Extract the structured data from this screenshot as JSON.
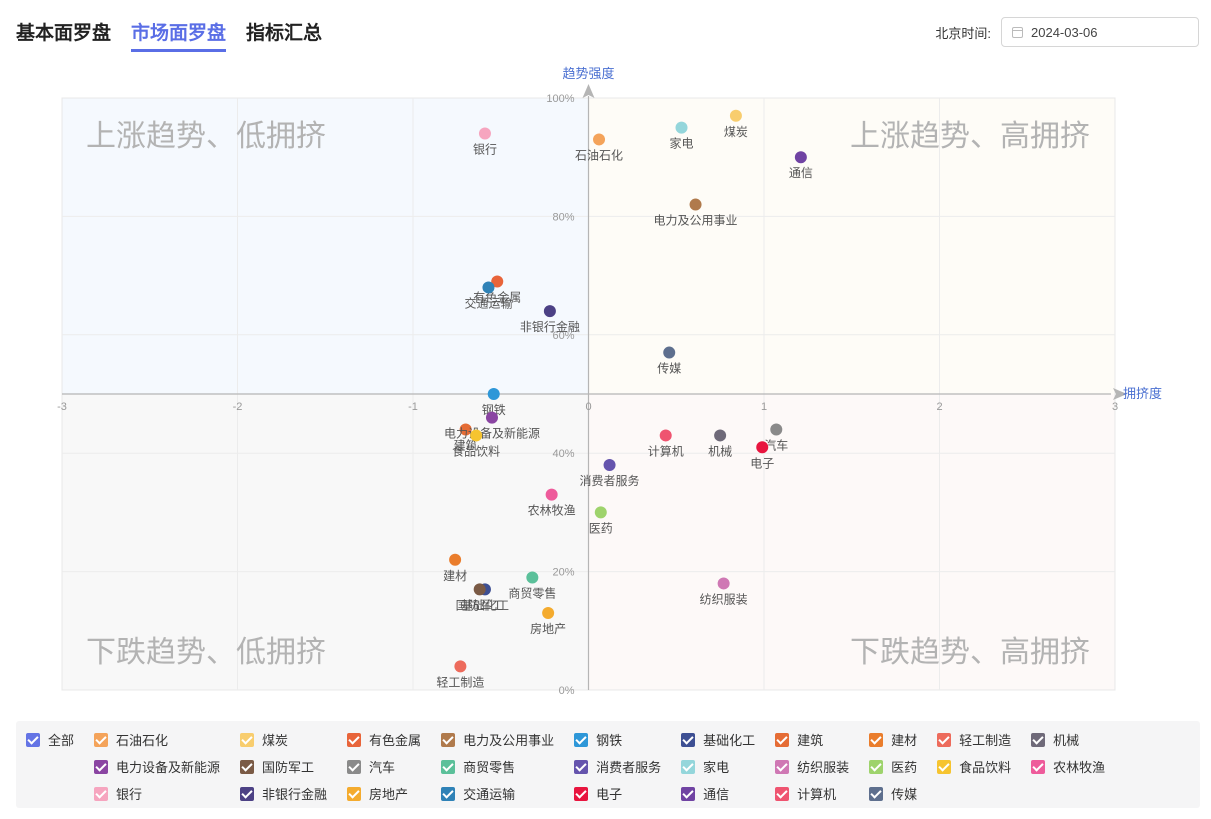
{
  "tabs": [
    {
      "label": "基本面罗盘",
      "active": false
    },
    {
      "label": "市场面罗盘",
      "active": true
    },
    {
      "label": "指标汇总",
      "active": false
    }
  ],
  "date": {
    "label": "北京时间:",
    "value": "2024-03-06"
  },
  "chart_data": {
    "type": "scatter",
    "xlabel": "拥挤度",
    "ylabel": "趋势强度",
    "xlim": [
      -3,
      3
    ],
    "ylim": [
      0,
      100
    ],
    "x_ticks": [
      "-3",
      "-2",
      "-1",
      "0",
      "1",
      "2",
      "3"
    ],
    "y_ticks": [
      "0%",
      "20%",
      "40%",
      "60%",
      "80%",
      "100%"
    ],
    "quadrant_labels": {
      "top_left": "上涨趋势、低拥挤",
      "top_right": "上涨趋势、高拥挤",
      "bottom_left": "下跌趋势、低拥挤",
      "bottom_right": "下跌趋势、高拥挤"
    },
    "quadrant_colors": {
      "top_left": "#f5f9fe",
      "top_right": "#fefcf7",
      "bottom_left": "#f8f8f8",
      "bottom_right": "#fdf9f8"
    },
    "points": [
      {
        "name": "石油石化",
        "x": 0.06,
        "y": 93,
        "color": "#f4a35a"
      },
      {
        "name": "煤炭",
        "x": 0.84,
        "y": 97,
        "color": "#f8cd6e"
      },
      {
        "name": "有色金属",
        "x": -0.52,
        "y": 69,
        "color": "#e8643a"
      },
      {
        "name": "电力及公用事业",
        "x": 0.61,
        "y": 82,
        "color": "#b07a4c"
      },
      {
        "name": "钢铁",
        "x": -0.54,
        "y": 50,
        "color": "#2e97d8"
      },
      {
        "name": "基础化工",
        "x": -0.59,
        "y": 17,
        "color": "#3d4f93"
      },
      {
        "name": "建筑",
        "x": -0.7,
        "y": 44,
        "color": "#e56c35"
      },
      {
        "name": "建材",
        "x": -0.76,
        "y": 22,
        "color": "#ea7d2c"
      },
      {
        "name": "轻工制造",
        "x": -0.73,
        "y": 4,
        "color": "#ed6b5c"
      },
      {
        "name": "机械",
        "x": 0.75,
        "y": 43,
        "color": "#6f6a79"
      },
      {
        "name": "电力设备及新能源",
        "x": -0.55,
        "y": 46,
        "color": "#8a45a2"
      },
      {
        "name": "国防军工",
        "x": -0.62,
        "y": 17,
        "color": "#7a5a45"
      },
      {
        "name": "汽车",
        "x": 1.07,
        "y": 44,
        "color": "#8a8a8a"
      },
      {
        "name": "商贸零售",
        "x": -0.32,
        "y": 19,
        "color": "#5bc09a"
      },
      {
        "name": "消费者服务",
        "x": 0.12,
        "y": 38,
        "color": "#6554ad"
      },
      {
        "name": "家电",
        "x": 0.53,
        "y": 95,
        "color": "#94d6db"
      },
      {
        "name": "纺织服装",
        "x": 0.77,
        "y": 18,
        "color": "#cf78b4"
      },
      {
        "name": "医药",
        "x": 0.07,
        "y": 30,
        "color": "#9ed36c"
      },
      {
        "name": "食品饮料",
        "x": -0.64,
        "y": 43,
        "color": "#f6c430"
      },
      {
        "name": "农林牧渔",
        "x": -0.21,
        "y": 33,
        "color": "#ee5b9b"
      },
      {
        "name": "银行",
        "x": -0.59,
        "y": 94,
        "color": "#f6a5bf"
      },
      {
        "name": "非银行金融",
        "x": -0.22,
        "y": 64,
        "color": "#4c4185"
      },
      {
        "name": "房地产",
        "x": -0.23,
        "y": 13,
        "color": "#f4ab2e"
      },
      {
        "name": "交通运输",
        "x": -0.57,
        "y": 68,
        "color": "#2f82b7"
      },
      {
        "name": "电子",
        "x": 0.99,
        "y": 41,
        "color": "#e8153f"
      },
      {
        "name": "通信",
        "x": 1.21,
        "y": 90,
        "color": "#7043a3"
      },
      {
        "name": "计算机",
        "x": 0.44,
        "y": 43,
        "color": "#ef5470"
      },
      {
        "name": "传媒",
        "x": 0.46,
        "y": 57,
        "color": "#5e6f8e"
      }
    ]
  },
  "legend": {
    "all_label": "全部",
    "all_color": "#6474e5",
    "items": [
      {
        "label": "石油石化",
        "color": "#f4a35a"
      },
      {
        "label": "煤炭",
        "color": "#f8cd6e"
      },
      {
        "label": "有色金属",
        "color": "#e8643a"
      },
      {
        "label": "电力及公用事业",
        "color": "#b07a4c"
      },
      {
        "label": "钢铁",
        "color": "#2e97d8"
      },
      {
        "label": "基础化工",
        "color": "#3d4f93"
      },
      {
        "label": "建筑",
        "color": "#e56c35"
      },
      {
        "label": "建材",
        "color": "#ea7d2c"
      },
      {
        "label": "轻工制造",
        "color": "#ed6b5c"
      },
      {
        "label": "机械",
        "color": "#6f6a79"
      },
      {
        "label": "电力设备及新能源",
        "color": "#8a45a2"
      },
      {
        "label": "国防军工",
        "color": "#7a5a45"
      },
      {
        "label": "汽车",
        "color": "#8a8a8a"
      },
      {
        "label": "商贸零售",
        "color": "#5bc09a"
      },
      {
        "label": "消费者服务",
        "color": "#6554ad"
      },
      {
        "label": "家电",
        "color": "#94d6db"
      },
      {
        "label": "纺织服装",
        "color": "#cf78b4"
      },
      {
        "label": "医药",
        "color": "#9ed36c"
      },
      {
        "label": "食品饮料",
        "color": "#f6c430"
      },
      {
        "label": "农林牧渔",
        "color": "#ee5b9b"
      },
      {
        "label": "银行",
        "color": "#f6a5bf"
      },
      {
        "label": "非银行金融",
        "color": "#4c4185"
      },
      {
        "label": "房地产",
        "color": "#f4ab2e"
      },
      {
        "label": "交通运输",
        "color": "#2f82b7"
      },
      {
        "label": "电子",
        "color": "#e8153f"
      },
      {
        "label": "通信",
        "color": "#7043a3"
      },
      {
        "label": "计算机",
        "color": "#ef5470"
      },
      {
        "label": "传媒",
        "color": "#5e6f8e"
      }
    ]
  }
}
